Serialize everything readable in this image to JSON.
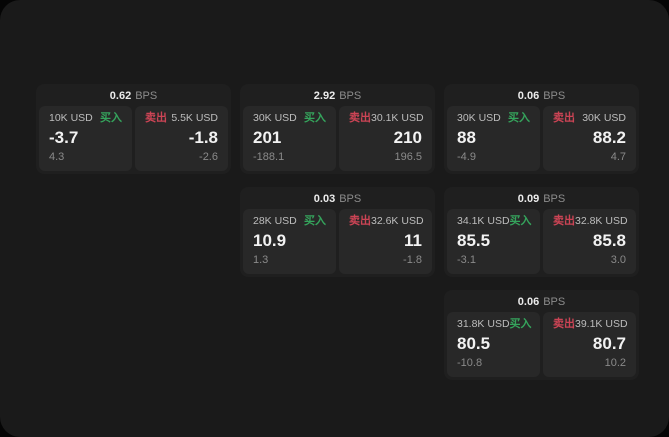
{
  "app": {
    "bps_suffix": "BPS",
    "buy_label": "买入",
    "sell_label": "卖出"
  },
  "colors": {
    "green": "#35a45c",
    "red": "#cc4455",
    "window_bg": "#1a1a1a",
    "card_bg": "#1f1f1f",
    "subcard_bg": "#282828"
  },
  "cards": [
    {
      "col": 1,
      "row": 1,
      "bps": "0.62",
      "buy": {
        "amount": "10K USD",
        "value": "-3.7",
        "delta": "4.3"
      },
      "sell": {
        "amount": "5.5K USD",
        "value": "-1.8",
        "delta": "-2.6"
      }
    },
    {
      "col": 2,
      "row": 1,
      "bps": "2.92",
      "buy": {
        "amount": "30K USD",
        "value": "201",
        "delta": "-188.1"
      },
      "sell": {
        "amount": "30.1K USD",
        "value": "210",
        "delta": "196.5"
      }
    },
    {
      "col": 3,
      "row": 1,
      "bps": "0.06",
      "buy": {
        "amount": "30K USD",
        "value": "88",
        "delta": "-4.9"
      },
      "sell": {
        "amount": "30K USD",
        "value": "88.2",
        "delta": "4.7"
      }
    },
    {
      "col": 2,
      "row": 2,
      "bps": "0.03",
      "buy": {
        "amount": "28K USD",
        "value": "10.9",
        "delta": "1.3"
      },
      "sell": {
        "amount": "32.6K USD",
        "value": "11",
        "delta": "-1.8"
      }
    },
    {
      "col": 3,
      "row": 2,
      "bps": "0.09",
      "buy": {
        "amount": "34.1K USD",
        "value": "85.5",
        "delta": "-3.1"
      },
      "sell": {
        "amount": "32.8K USD",
        "value": "85.8",
        "delta": "3.0"
      }
    },
    {
      "col": 3,
      "row": 3,
      "bps": "0.06",
      "buy": {
        "amount": "31.8K USD",
        "value": "80.5",
        "delta": "-10.8"
      },
      "sell": {
        "amount": "39.1K USD",
        "value": "80.7",
        "delta": "10.2"
      }
    }
  ]
}
